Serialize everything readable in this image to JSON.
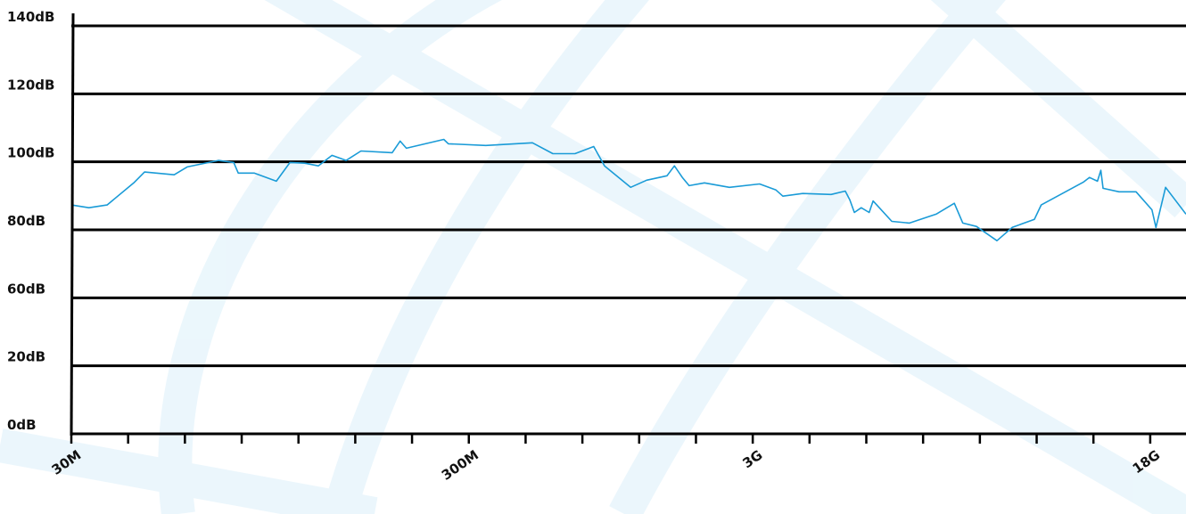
{
  "chart_data": {
    "type": "line",
    "categories": [
      "30M",
      null,
      null,
      null,
      null,
      null,
      null,
      "300M",
      null,
      null,
      null,
      null,
      "3G",
      null,
      null,
      null,
      null,
      null,
      null,
      "18G"
    ],
    "x": [
      0,
      0.31,
      0.63,
      1.1,
      1.29,
      1.81,
      2.04,
      2.59,
      2.86,
      2.94,
      3.22,
      3.61,
      3.85,
      4.11,
      4.35,
      4.59,
      4.84,
      5.1,
      5.65,
      5.79,
      5.9,
      6.56,
      6.64,
      7.3,
      8.12,
      8.48,
      8.87,
      9.2,
      9.39,
      9.85,
      10.13,
      10.49,
      10.62,
      10.76,
      10.88,
      11.15,
      11.59,
      12.12,
      12.41,
      12.53,
      12.88,
      13.38,
      13.63,
      13.71,
      13.79,
      13.91,
      14.05,
      14.12,
      14.45,
      14.76,
      15.23,
      15.55,
      15.7,
      15.94,
      16.3,
      16.57,
      16.96,
      17.08,
      17.82,
      17.93,
      18.07,
      18.13,
      18.17,
      18.45,
      18.75,
      19.03,
      19.1,
      19.27,
      19.63
    ],
    "series": [
      {
        "color": "#1a9bd7",
        "values": [
          87.3,
          86.5,
          87.3,
          93.8,
          97,
          96.2,
          98.5,
          100.4,
          99.8,
          96.7,
          96.7,
          94.3,
          99.8,
          99.6,
          98.8,
          101.9,
          100.4,
          103.2,
          102.7,
          106.1,
          104,
          106.6,
          105.3,
          104.8,
          105.6,
          102.4,
          102.4,
          104.5,
          98.8,
          92.5,
          94.6,
          95.9,
          98.8,
          95.4,
          93,
          93.8,
          92.5,
          93.5,
          91.7,
          89.9,
          90.7,
          90.4,
          91.4,
          88.8,
          85.1,
          86.5,
          85.1,
          88.5,
          82.5,
          82,
          84.6,
          87.8,
          82,
          81,
          76.8,
          80.7,
          83.1,
          87.3,
          94,
          95.4,
          94.3,
          97.5,
          92.2,
          91.2,
          91.2,
          85.9,
          80.7,
          92.5,
          84.6
        ]
      }
    ],
    "xlim": [
      0,
      19.63
    ],
    "ylim": [
      0,
      140
    ],
    "yticks": [
      {
        "value": 0,
        "label": "0dB"
      },
      {
        "value": 20,
        "label": "20dB"
      },
      {
        "value": 60,
        "label": "60dB"
      },
      {
        "value": 80,
        "label": "80dB"
      },
      {
        "value": 100,
        "label": "100dB"
      },
      {
        "value": 120,
        "label": "120dB"
      },
      {
        "value": 140,
        "label": "140dB"
      }
    ],
    "grid": true
  }
}
